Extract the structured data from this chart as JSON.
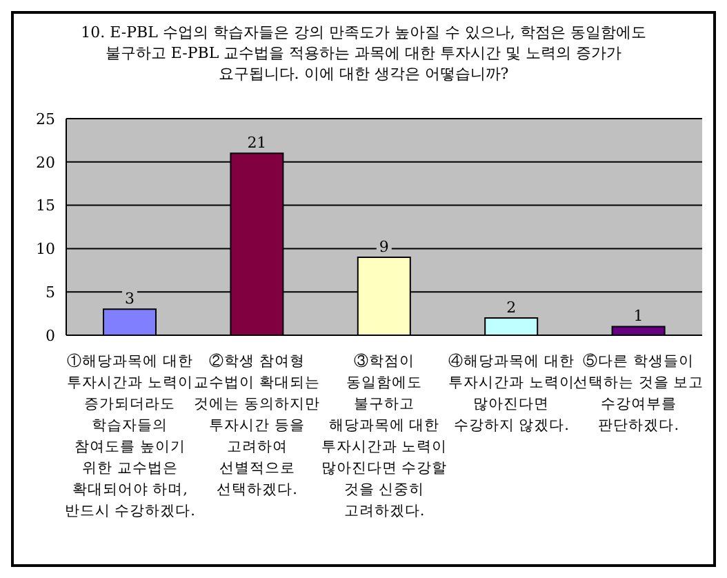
{
  "chart_data": {
    "type": "bar",
    "title": "10. E-PBL 수업의 학습자들은 강의 만족도가 높아질 수 있으나, 학점은 동일함에도\n불구하고 E-PBL 교수법을 적용하는 과목에 대한 투자시간 및 노력의 증가가\n요구됩니다. 이에 대한 생각은 어떻습니까?",
    "categories": [
      "①해당과목에 대한\n투자시간과 노력이\n증가되더라도\n학습자들의\n참여도를 높이기\n위한 교수법은\n확대되어야 하며,\n반드시 수강하겠다.",
      "②학생 참여형\n교수법이 확대되는\n것에는 동의하지만\n투자시간 등을\n고려하여\n선별적으로\n선택하겠다.",
      "③학점이\n동일함에도\n불구하고\n해당과목에 대한\n투자시간과 노력이\n많아진다면 수강할\n것을 신중히\n고려하겠다.",
      "④해당과목에 대한\n투자시간과 노력이\n많아진다면\n수강하지 않겠다.",
      "⑤다른 학생들이\n선택하는 것을 보고\n수강여부를\n판단하겠다."
    ],
    "values": [
      3,
      21,
      9,
      2,
      1
    ],
    "colors": [
      "#8080ff",
      "#800040",
      "#ffffc0",
      "#c0ffff",
      "#660080"
    ],
    "ylim": [
      0,
      25
    ],
    "yticks": [
      0,
      5,
      10,
      15,
      20,
      25
    ],
    "grid": "y",
    "data_labels": true
  }
}
